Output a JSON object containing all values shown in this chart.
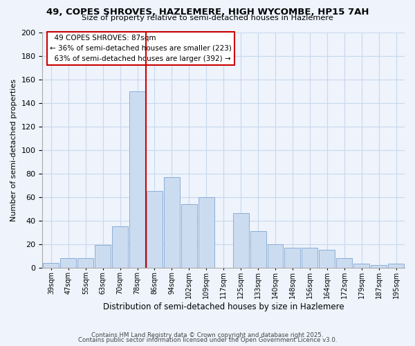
{
  "title1": "49, COPES SHROVES, HAZLEMERE, HIGH WYCOMBE, HP15 7AH",
  "title2": "Size of property relative to semi-detached houses in Hazlemere",
  "xlabel": "Distribution of semi-detached houses by size in Hazlemere",
  "ylabel": "Number of semi-detached properties",
  "bar_labels": [
    "39sqm",
    "47sqm",
    "55sqm",
    "63sqm",
    "70sqm",
    "78sqm",
    "86sqm",
    "94sqm",
    "102sqm",
    "109sqm",
    "117sqm",
    "125sqm",
    "133sqm",
    "140sqm",
    "148sqm",
    "156sqm",
    "164sqm",
    "172sqm",
    "179sqm",
    "187sqm",
    "195sqm"
  ],
  "bar_values": [
    4,
    8,
    8,
    19,
    35,
    150,
    65,
    77,
    54,
    60,
    0,
    46,
    31,
    20,
    17,
    17,
    15,
    8,
    3,
    2,
    3
  ],
  "bar_color": "#ccdcf0",
  "bar_edge_color": "#8aadd4",
  "vline_x": 5.5,
  "vline_color": "#cc0000",
  "ylim": [
    0,
    200
  ],
  "yticks": [
    0,
    20,
    40,
    60,
    80,
    100,
    120,
    140,
    160,
    180,
    200
  ],
  "annotation_title": "49 COPES SHROVES: 87sqm",
  "annotation_line1": "← 36% of semi-detached houses are smaller (223)",
  "annotation_line2": "63% of semi-detached houses are larger (392) →",
  "annotation_box_color": "#ffffff",
  "annotation_border_color": "#cc0000",
  "footer1": "Contains HM Land Registry data © Crown copyright and database right 2025.",
  "footer2": "Contains public sector information licensed under the Open Government Licence v3.0.",
  "bg_color": "#eef3fc",
  "grid_color": "#c8d8ec"
}
